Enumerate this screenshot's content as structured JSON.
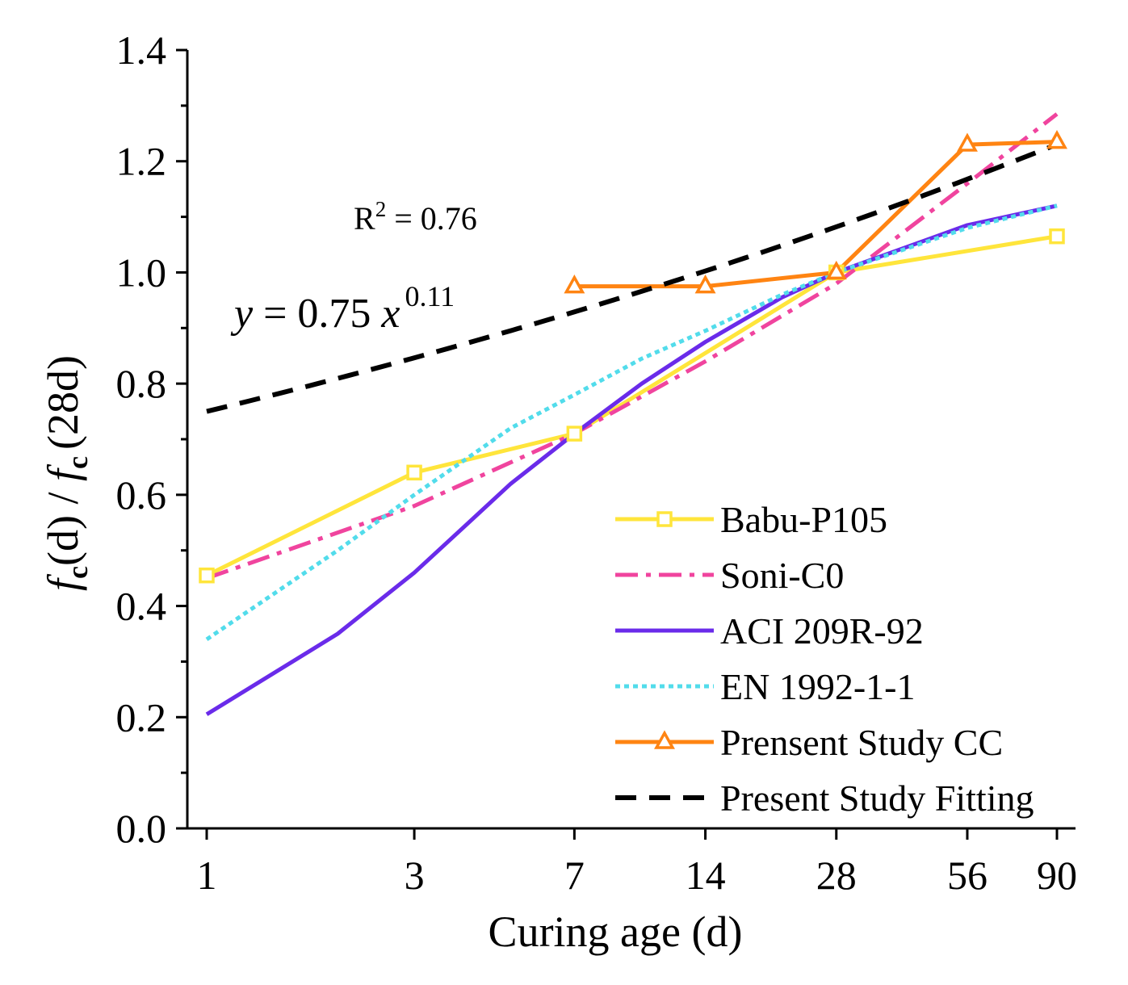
{
  "chart_data": {
    "type": "line",
    "xscale": "log",
    "x_ticks": [
      1,
      3,
      7,
      14,
      28,
      56,
      90
    ],
    "x_tick_labels": [
      "1",
      "3",
      "7",
      "14",
      "28",
      "56",
      "90"
    ],
    "xlim": [
      0.93,
      97
    ],
    "ylim": [
      0,
      1.4
    ],
    "y_ticks": [
      0.0,
      0.2,
      0.4,
      0.6,
      0.8,
      1.0,
      1.2,
      1.4
    ],
    "y_tick_labels": [
      "0.0",
      "0.2",
      "0.4",
      "0.6",
      "0.8",
      "1.0",
      "1.2",
      "1.4"
    ],
    "xlabel": "Curing age (d)",
    "ylabel": {
      "f1": "f",
      "c1": "c",
      "mid": "(d) / ",
      "f2": "f",
      "c2": "c",
      "end": "(28d)"
    },
    "annotations": {
      "r2_prefix": "R",
      "r2_exp": "2",
      "r2_value": " = 0.76",
      "eq_y": "y",
      "eq_mid": " = 0.75 ",
      "eq_x": "x",
      "eq_exp": "0.11"
    },
    "legend_position": "bottom-right",
    "series": [
      {
        "name": "Babu-P105",
        "color": "#FFE53B",
        "dash": "solid",
        "marker": "square",
        "x": [
          1,
          3,
          7,
          28,
          90
        ],
        "y": [
          0.455,
          0.64,
          0.71,
          1.0,
          1.065
        ]
      },
      {
        "name": "Soni-C0",
        "color": "#F0449E",
        "dash": "dashdot",
        "marker": "none",
        "x": [
          1,
          3,
          7,
          14,
          28,
          56,
          90
        ],
        "y": [
          0.45,
          0.58,
          0.71,
          0.84,
          0.98,
          1.16,
          1.285
        ]
      },
      {
        "name": "ACI 209R-92",
        "color": "#6A2BEA",
        "dash": "solid",
        "marker": "none",
        "x": [
          1,
          2,
          3,
          4,
          5,
          7,
          10,
          14,
          21,
          28,
          56,
          90
        ],
        "y": [
          0.205,
          0.35,
          0.46,
          0.55,
          0.62,
          0.71,
          0.8,
          0.875,
          0.955,
          1.0,
          1.085,
          1.12
        ]
      },
      {
        "name": "EN 1992-1-1",
        "color": "#52DCEB",
        "dash": "dot",
        "marker": "none",
        "x": [
          1,
          2,
          3,
          5,
          7,
          10,
          14,
          21,
          28,
          56,
          90
        ],
        "y": [
          0.34,
          0.5,
          0.6,
          0.72,
          0.78,
          0.845,
          0.895,
          0.96,
          1.0,
          1.08,
          1.12
        ]
      },
      {
        "name": "Prensent Study CC",
        "color": "#FF8412",
        "dash": "solid",
        "marker": "triangle",
        "x": [
          7,
          14,
          28,
          56,
          90
        ],
        "y": [
          0.975,
          0.975,
          1.0,
          1.23,
          1.235
        ]
      },
      {
        "name": "Present Study Fitting",
        "color": "#000000",
        "dash": "dash",
        "marker": "none",
        "fit": {
          "a": 0.75,
          "b": 0.11,
          "x_from": 1,
          "x_to": 90
        }
      }
    ]
  }
}
